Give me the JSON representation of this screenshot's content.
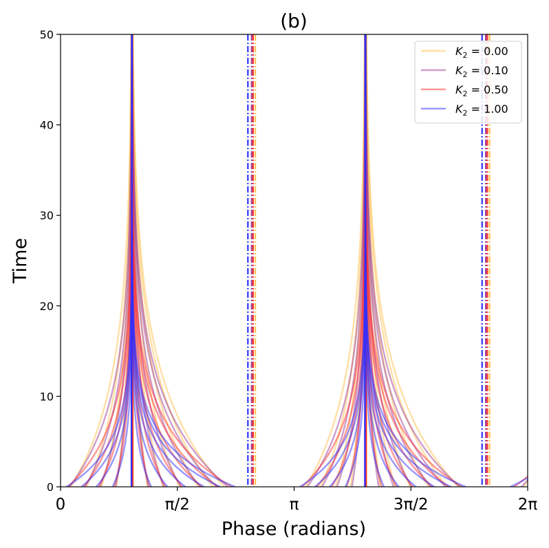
{
  "chart_data": {
    "type": "line",
    "title": "(b)",
    "xlabel": "Phase (radians)",
    "ylabel": "Time",
    "xlim": [
      0,
      6.283185307179586
    ],
    "ylim": [
      0,
      50
    ],
    "x_ticks": [
      {
        "value": 0,
        "label": "0"
      },
      {
        "value": 1.5707963267948966,
        "label": "π/2"
      },
      {
        "value": 3.141592653589793,
        "label": "π"
      },
      {
        "value": 4.71238898038469,
        "label": "3π/2"
      },
      {
        "value": 6.283185307179586,
        "label": "2π"
      }
    ],
    "y_ticks": [
      {
        "value": 0,
        "label": "0"
      },
      {
        "value": 10,
        "label": "10"
      },
      {
        "value": 20,
        "label": "20"
      },
      {
        "value": 30,
        "label": "30"
      },
      {
        "value": 40,
        "label": "40"
      },
      {
        "value": 50,
        "label": "50"
      }
    ],
    "legend_position": "top-right",
    "stable_phases": [
      0.96,
      4.1
    ],
    "unstable_phases": [
      2.55,
      5.7
    ],
    "series": [
      {
        "name": "K₂ = 0.00",
        "label_prefix": "K",
        "label_sub": "2",
        "label_value": " = 0.00",
        "color": "#FFC04D",
        "rate": 0.09,
        "vline_offset": 0.07,
        "start_phases": [
          0.14,
          0.35,
          0.55,
          0.75,
          1.17,
          1.38,
          1.6,
          1.85,
          2.05,
          2.2,
          3.3,
          3.5,
          3.7,
          3.9,
          4.3,
          4.5,
          4.7,
          4.95,
          5.2,
          5.35,
          6.23
        ]
      },
      {
        "name": "K₂ = 0.10",
        "label_prefix": "K",
        "label_sub": "2",
        "label_value": " = 0.10",
        "color": "#9B3E97",
        "rate": 0.11,
        "vline_offset": 0.02,
        "start_phases": [
          0.12,
          0.33,
          0.53,
          0.74,
          1.18,
          1.39,
          1.62,
          1.88,
          2.1,
          2.25,
          3.32,
          3.52,
          3.72,
          3.92,
          4.28,
          4.48,
          4.72,
          4.98,
          5.18,
          5.37,
          6.2
        ]
      },
      {
        "name": "K₂ = 0.50",
        "label_prefix": "K",
        "label_sub": "2",
        "label_value": " = 0.50",
        "color": "#FF3030",
        "rate": 0.15,
        "vline_offset": 0.04,
        "start_phases": [
          0.1,
          0.31,
          0.51,
          0.72,
          1.2,
          1.41,
          1.64,
          1.9,
          2.12,
          2.3,
          3.25,
          3.45,
          3.65,
          3.85,
          4.32,
          4.52,
          4.74,
          5.0,
          5.22,
          5.4,
          6.1
        ]
      },
      {
        "name": "K₂ = 1.00",
        "label_prefix": "K",
        "label_sub": "2",
        "label_value": " = 1.00",
        "color": "#3030FF",
        "rate": 0.22,
        "vline_offset": -0.03,
        "start_phases": [
          0.08,
          0.28,
          0.48,
          0.7,
          1.22,
          1.44,
          1.68,
          1.93,
          2.15,
          2.35,
          3.22,
          3.42,
          3.62,
          3.83,
          4.35,
          4.55,
          4.78,
          5.03,
          5.25,
          5.45,
          6.05
        ]
      }
    ]
  }
}
